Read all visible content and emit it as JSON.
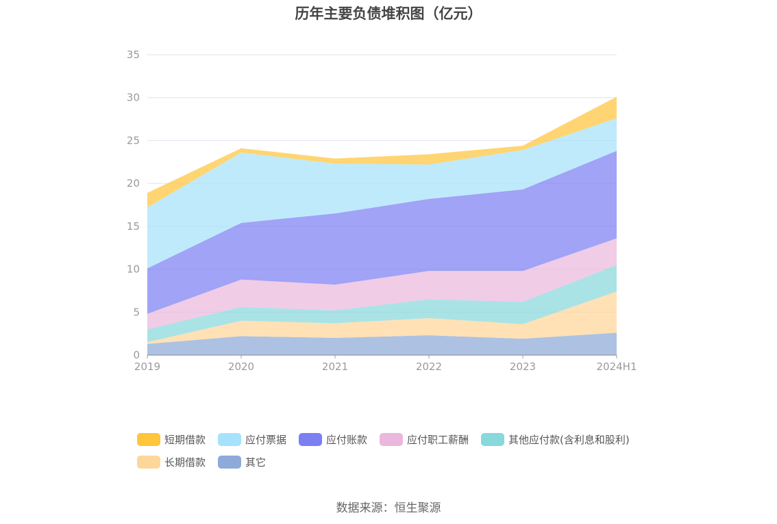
{
  "chart_data": {
    "type": "area",
    "stacked": true,
    "title": "历年主要负债堆积图（亿元）",
    "categories": [
      "2019",
      "2020",
      "2021",
      "2022",
      "2023",
      "2024H1"
    ],
    "ylim": [
      0,
      35
    ],
    "yticks": [
      "0",
      "5",
      "10",
      "15",
      "20",
      "25",
      "30",
      "35"
    ],
    "grid": true,
    "legend_position": "bottom",
    "series": [
      {
        "name": "其它",
        "color": "#8eaad8",
        "values": [
          1.3,
          2.2,
          2.0,
          2.3,
          1.9,
          2.6
        ]
      },
      {
        "name": "长期借款",
        "color": "#ffd699",
        "values": [
          0.2,
          1.8,
          1.7,
          2.0,
          1.7,
          4.8
        ]
      },
      {
        "name": "其他应付款(含利息和股利)",
        "color": "#88d8dc",
        "values": [
          1.5,
          1.6,
          1.5,
          2.2,
          2.6,
          3.1
        ]
      },
      {
        "name": "应付职工薪酬",
        "color": "#eab8dc",
        "values": [
          1.8,
          3.2,
          3.0,
          3.3,
          3.6,
          3.1
        ]
      },
      {
        "name": "应付账款",
        "color": "#7b7ff2",
        "values": [
          5.3,
          6.6,
          8.3,
          8.4,
          9.5,
          10.2
        ]
      },
      {
        "name": "应付票据",
        "color": "#a6e2fb",
        "values": [
          7.1,
          8.2,
          5.8,
          4.0,
          4.6,
          3.8
        ]
      },
      {
        "name": "短期借款",
        "color": "#ffc53d",
        "values": [
          1.7,
          0.5,
          0.6,
          1.2,
          0.5,
          2.5
        ]
      }
    ]
  },
  "legend": [
    {
      "label": "短期借款",
      "color": "#ffc53d"
    },
    {
      "label": "应付票据",
      "color": "#a6e2fb"
    },
    {
      "label": "应付账款",
      "color": "#7b7ff2"
    },
    {
      "label": "应付职工薪酬",
      "color": "#eab8dc"
    },
    {
      "label": "其他应付款(含利息和股利)",
      "color": "#88d8dc"
    },
    {
      "label": "长期借款",
      "color": "#ffd699"
    },
    {
      "label": "其它",
      "color": "#8eaad8"
    }
  ],
  "source": "数据来源：恒生聚源"
}
